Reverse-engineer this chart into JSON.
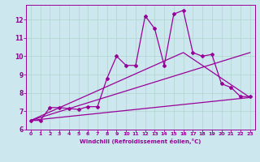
{
  "xlabel": "Windchill (Refroidissement éolien,°C)",
  "background_color": "#cce8ee",
  "grid_color": "#b0d4cc",
  "line_color": "#990099",
  "xlim": [
    -0.5,
    23.5
  ],
  "ylim": [
    6.0,
    12.8
  ],
  "yticks": [
    6,
    7,
    8,
    9,
    10,
    11,
    12
  ],
  "xticks": [
    0,
    1,
    2,
    3,
    4,
    5,
    6,
    7,
    8,
    9,
    10,
    11,
    12,
    13,
    14,
    15,
    16,
    17,
    18,
    19,
    20,
    21,
    22,
    23
  ],
  "series1_x": [
    0,
    1,
    2,
    3,
    4,
    5,
    6,
    7,
    8,
    9,
    10,
    11,
    12,
    13,
    14,
    15,
    16,
    17,
    18,
    19,
    20,
    21,
    22,
    23
  ],
  "series1_y": [
    6.5,
    6.5,
    7.2,
    7.2,
    7.15,
    7.1,
    7.25,
    7.25,
    8.8,
    10.0,
    9.5,
    9.5,
    12.2,
    11.5,
    9.5,
    12.3,
    12.5,
    10.2,
    10.0,
    10.1,
    8.5,
    8.3,
    7.8,
    7.8
  ],
  "series2_x": [
    0,
    23
  ],
  "series2_y": [
    6.5,
    7.75
  ],
  "series3_x": [
    0,
    23
  ],
  "series3_y": [
    6.5,
    10.2
  ],
  "series4_x": [
    0,
    16,
    23
  ],
  "series4_y": [
    6.5,
    10.2,
    7.75
  ],
  "series5_x": [
    0,
    23
  ],
  "series5_y": [
    6.5,
    7.75
  ]
}
